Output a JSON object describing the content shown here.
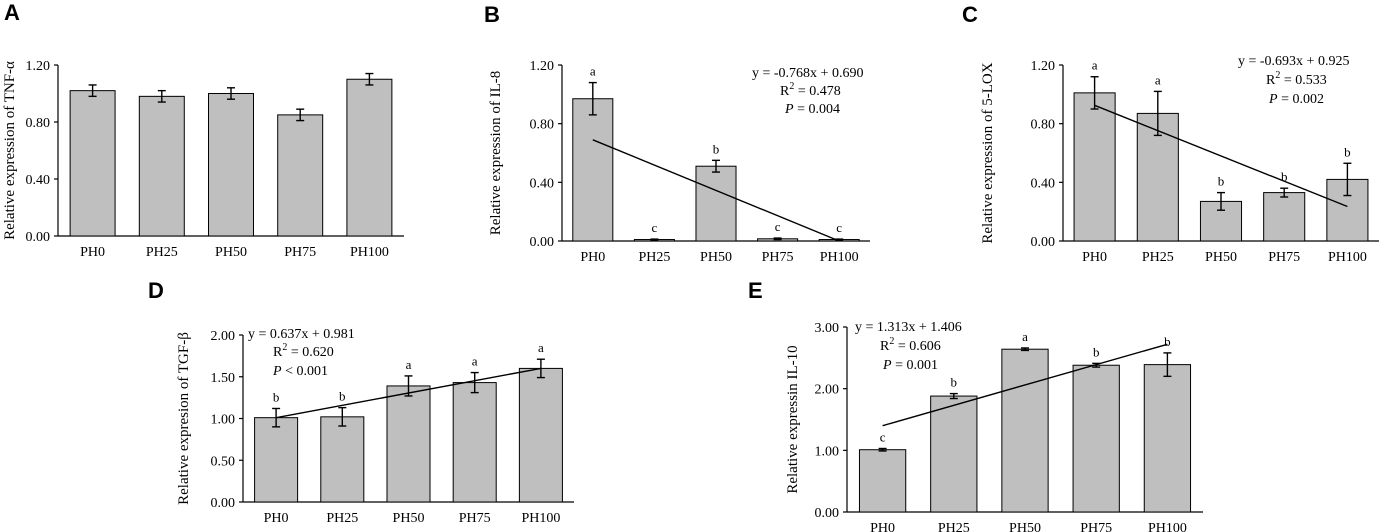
{
  "chart_data": [
    {
      "type": "bar",
      "panel": "A",
      "ylabel": "Relative expression of TNF-α",
      "categories": [
        "PH0",
        "PH25",
        "PH50",
        "PH75",
        "PH100"
      ],
      "values": [
        1.02,
        0.98,
        1.0,
        0.85,
        1.1
      ],
      "errors": [
        0.04,
        0.04,
        0.04,
        0.04,
        0.04
      ],
      "letters": [
        "",
        "",
        "",
        "",
        ""
      ],
      "ylim": [
        0,
        1.2
      ],
      "yticks": [
        "0.00",
        "0.40",
        "0.80",
        "1.20"
      ],
      "ytick_values": [
        0,
        0.4,
        0.8,
        1.2
      ]
    },
    {
      "type": "bar",
      "panel": "B",
      "ylabel": "Relative expression of IL-8",
      "categories": [
        "PH0",
        "PH25",
        "PH50",
        "PH75",
        "PH100"
      ],
      "values": [
        0.97,
        0.01,
        0.51,
        0.015,
        0.01
      ],
      "errors": [
        0.11,
        0.003,
        0.04,
        0.005,
        0.003
      ],
      "letters": [
        "a",
        "c",
        "b",
        "c",
        "c"
      ],
      "ylim": [
        0,
        1.2
      ],
      "yticks": [
        "0.00",
        "0.40",
        "0.80",
        "1.20"
      ],
      "ytick_values": [
        0,
        0.4,
        0.8,
        1.2
      ],
      "trendline": {
        "start": 0.69,
        "end": 0.0
      },
      "equation": "y = -0.768x + 0.690",
      "r2_label": "R",
      "r2_sup": "2",
      "r2_value": " = 0.478",
      "p_label": "P",
      "p_value": " = 0.004"
    },
    {
      "type": "bar",
      "panel": "C",
      "ylabel": "Relative expression of 5-LOX",
      "categories": [
        "PH0",
        "PH25",
        "PH50",
        "PH75",
        "PH100"
      ],
      "values": [
        1.01,
        0.87,
        0.27,
        0.33,
        0.42
      ],
      "errors": [
        0.11,
        0.15,
        0.06,
        0.03,
        0.11
      ],
      "letters": [
        "a",
        "a",
        "b",
        "b",
        "b"
      ],
      "ylim": [
        0,
        1.2
      ],
      "yticks": [
        "0.00",
        "0.40",
        "0.80",
        "1.20"
      ],
      "ytick_values": [
        0,
        0.4,
        0.8,
        1.2
      ],
      "trendline": {
        "start": 0.925,
        "end": 0.235
      },
      "equation": "y = -0.693x + 0.925",
      "r2_label": "R",
      "r2_sup": "2",
      "r2_value": " = 0.533",
      "p_label": "P",
      "p_value": " = 0.002"
    },
    {
      "type": "bar",
      "panel": "D",
      "ylabel": "Relative expresion of TGF-β",
      "categories": [
        "PH0",
        "PH25",
        "PH50",
        "PH75",
        "PH100"
      ],
      "values": [
        1.01,
        1.02,
        1.39,
        1.43,
        1.6
      ],
      "errors": [
        0.11,
        0.11,
        0.12,
        0.12,
        0.11
      ],
      "letters": [
        "b",
        "b",
        "a",
        "a",
        "a"
      ],
      "ylim": [
        0,
        2.0
      ],
      "yticks": [
        "0.00",
        "0.50",
        "1.00",
        "1.50",
        "2.00"
      ],
      "ytick_values": [
        0,
        0.5,
        1.0,
        1.5,
        2.0
      ],
      "trendline": {
        "start": 1.01,
        "end": 1.6
      },
      "equation": "y = 0.637x + 0.981",
      "r2_label": "R",
      "r2_sup": "2",
      "r2_value": " = 0.620",
      "p_label": "P",
      "p_value": " < 0.001"
    },
    {
      "type": "bar",
      "panel": "E",
      "ylabel": "Relative expressin IL-10",
      "categories": [
        "PH0",
        "PH25",
        "PH50",
        "PH75",
        "PH100"
      ],
      "values": [
        1.01,
        1.88,
        2.64,
        2.38,
        2.39
      ],
      "errors": [
        0.02,
        0.04,
        0.02,
        0.03,
        0.19
      ],
      "letters": [
        "c",
        "b",
        "a",
        "b",
        "b"
      ],
      "ylim": [
        0,
        3.0
      ],
      "yticks": [
        "0.00",
        "1.00",
        "2.00",
        "3.00"
      ],
      "ytick_values": [
        0,
        1.0,
        2.0,
        3.0
      ],
      "trendline": {
        "start": 1.4,
        "end": 2.72
      },
      "equation": "y = 1.313x + 1.406",
      "r2_label": "R",
      "r2_sup": "2",
      "r2_value": " = 0.606",
      "p_label": "P",
      "p_value": " = 0.001"
    }
  ]
}
